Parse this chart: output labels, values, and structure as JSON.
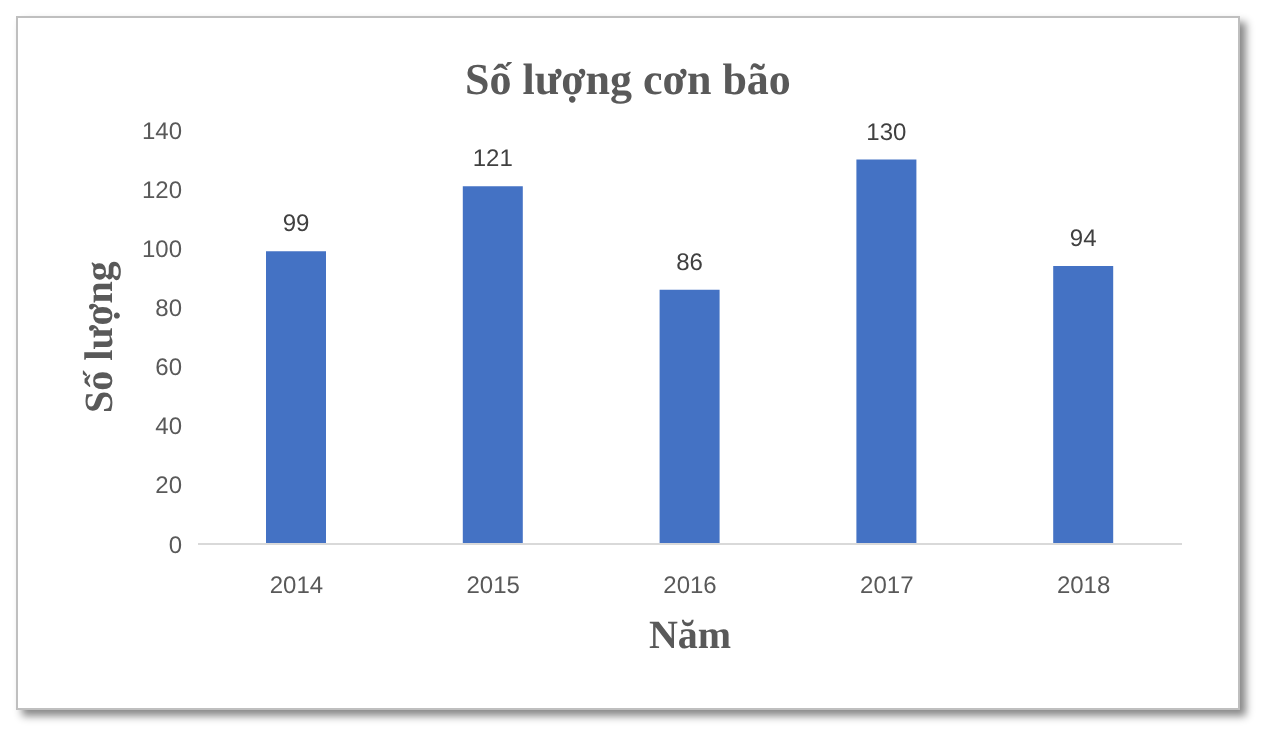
{
  "chart_data": {
    "type": "bar",
    "title": "Số lượng cơn bão",
    "xlabel": "Năm",
    "ylabel": "Số lượng",
    "categories": [
      "2014",
      "2015",
      "2016",
      "2017",
      "2018"
    ],
    "values": [
      99,
      121,
      86,
      130,
      94
    ],
    "color": "#4472c4",
    "ylim": [
      0,
      140
    ],
    "yticks": [
      0,
      20,
      40,
      60,
      80,
      100,
      120,
      140
    ],
    "grid": false,
    "data_labels": true
  }
}
